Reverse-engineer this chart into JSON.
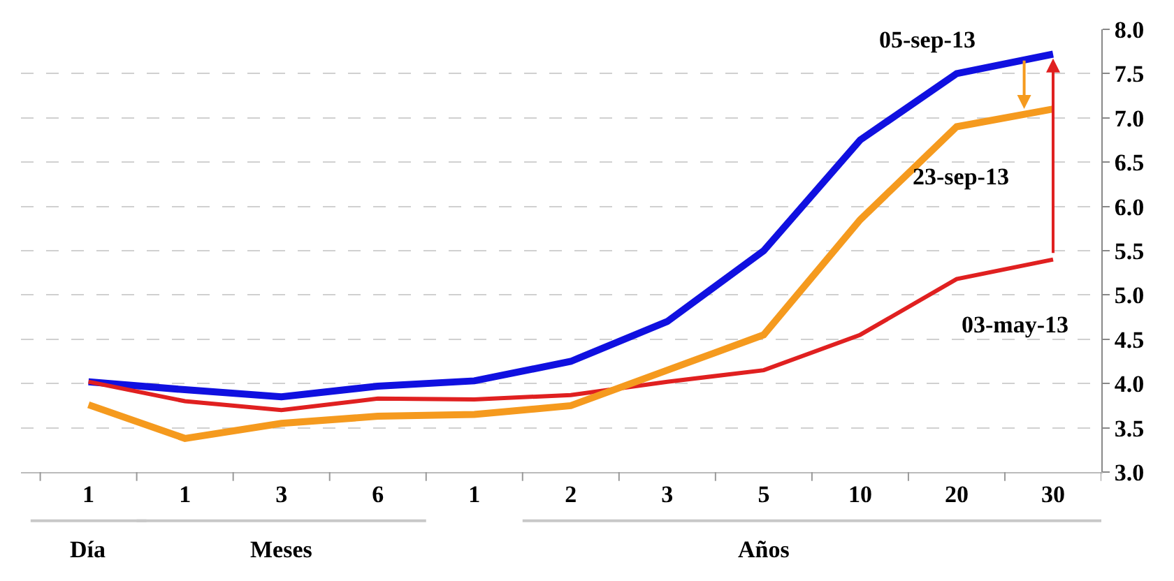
{
  "chart_data": {
    "type": "line",
    "categories": [
      "1",
      "1",
      "3",
      "6",
      "1",
      "2",
      "3",
      "5",
      "10",
      "20",
      "30"
    ],
    "series": [
      {
        "name": "05-sep-13",
        "color": "#1010e0",
        "values": [
          4.02,
          3.93,
          3.85,
          3.97,
          4.03,
          4.25,
          4.7,
          5.5,
          6.75,
          7.5,
          7.72
        ]
      },
      {
        "name": "03-may-13",
        "color": "#e02020",
        "values": [
          4.02,
          3.8,
          3.7,
          3.83,
          3.82,
          3.87,
          4.02,
          4.15,
          4.55,
          5.18,
          5.4
        ]
      },
      {
        "name": "23-sep-13",
        "color": "#f59a1e",
        "values": [
          3.76,
          3.38,
          3.55,
          3.63,
          3.65,
          3.75,
          4.15,
          4.55,
          5.85,
          6.9,
          7.1
        ]
      }
    ],
    "ylim": [
      3.0,
      8.0
    ],
    "yticks": [
      {
        "value": 3.0,
        "label": "3.0"
      },
      {
        "value": 3.5,
        "label": "3.5"
      },
      {
        "value": 4.0,
        "label": "4.0"
      },
      {
        "value": 4.5,
        "label": "4.5"
      },
      {
        "value": 5.0,
        "label": "5.0"
      },
      {
        "value": 5.5,
        "label": "5.5"
      },
      {
        "value": 6.0,
        "label": "6.0"
      },
      {
        "value": 6.5,
        "label": "6.5"
      },
      {
        "value": 7.0,
        "label": "7.0"
      },
      {
        "value": 7.5,
        "label": "7.5"
      },
      {
        "value": 8.0,
        "label": "8.0"
      }
    ],
    "grid": "y",
    "marker": "none",
    "line_style": "solid",
    "annotations": [
      "Día",
      "Meses",
      "Años"
    ]
  }
}
